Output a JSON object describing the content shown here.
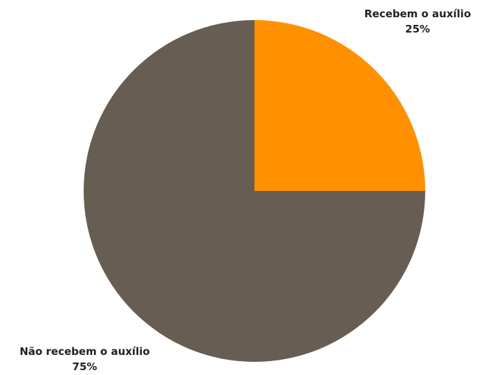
{
  "chart_data": {
    "type": "pie",
    "slices": [
      {
        "label": "Recebem o auxílio",
        "value": 25,
        "value_label": "25%",
        "color": "#FF9100"
      },
      {
        "label": "Não recebem o auxílio",
        "value": 75,
        "value_label": "75%",
        "color": "#685D52"
      }
    ],
    "start_angle_deg": 0,
    "direction": "clockwise",
    "legend": "none",
    "title": ""
  }
}
